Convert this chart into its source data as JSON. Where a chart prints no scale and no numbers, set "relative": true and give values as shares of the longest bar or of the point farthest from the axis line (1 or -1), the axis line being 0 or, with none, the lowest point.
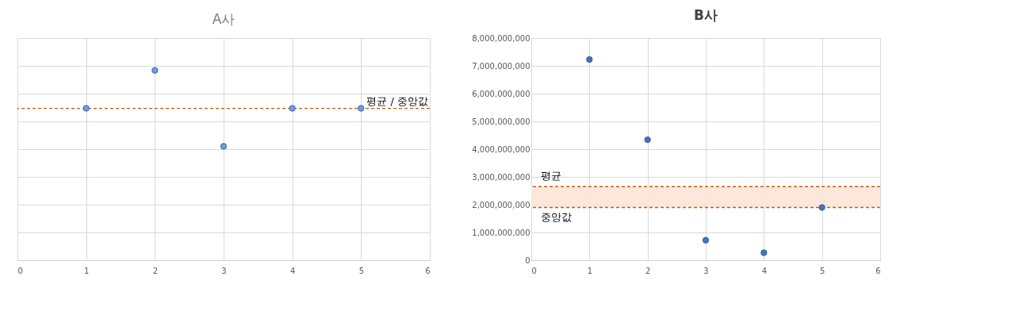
{
  "chart_data": [
    {
      "type": "scatter",
      "title": "A사",
      "x": [
        1,
        2,
        3,
        4,
        5
      ],
      "values": [
        0.8,
        1,
        0.6,
        0.8,
        0.8
      ],
      "relative": true,
      "color": "#6f9be0",
      "xlim": [
        0,
        6
      ],
      "xticks": [
        0,
        1,
        2,
        3,
        4,
        5,
        6
      ],
      "grid": true,
      "marker": "circle",
      "tick_labels": "x",
      "ref_lines": [
        {
          "axis": "y",
          "value": 0.8,
          "label": "평균 / 중앙값",
          "color": "#c55a11",
          "line_style": "dashed"
        }
      ]
    },
    {
      "type": "scatter",
      "title": "B사",
      "x": [
        1,
        2,
        3,
        4,
        5
      ],
      "values": [
        7230000000,
        4340000000,
        720000000,
        270000000,
        1900000000
      ],
      "color": "#4472c4",
      "xlim": [
        0,
        6
      ],
      "xticks": [
        0,
        1,
        2,
        3,
        4,
        5,
        6
      ],
      "ylim": [
        0,
        8000000000
      ],
      "yticks": [
        0,
        {
          "value": 1000000000,
          "label": "1,000,000,000"
        },
        {
          "value": 2000000000,
          "label": "2,000,000,000"
        },
        {
          "value": 3000000000,
          "label": "3,000,000,000"
        },
        {
          "value": 4000000000,
          "label": "4,000,000,000"
        },
        {
          "value": 5000000000,
          "label": "5,000,000,000"
        },
        {
          "value": 6000000000,
          "label": "6,000,000,000"
        },
        {
          "value": 7000000000,
          "label": "7,000,000,000"
        },
        {
          "value": 8000000000,
          "label": "8,000,000,000"
        }
      ],
      "grid": true,
      "marker": "circle",
      "ref_lines": [
        {
          "axis": "y",
          "value": 2650000000,
          "label": "평균",
          "color": "#c55a11",
          "line_style": "dashed"
        },
        {
          "axis": "y",
          "value": 1900000000,
          "label": "중앙값",
          "color": "#c55a11",
          "line_style": "dashed"
        }
      ],
      "bands": [
        {
          "axis": "y",
          "from": 1900000000,
          "to": 2650000000,
          "color": "#fbe5d6"
        }
      ]
    }
  ]
}
